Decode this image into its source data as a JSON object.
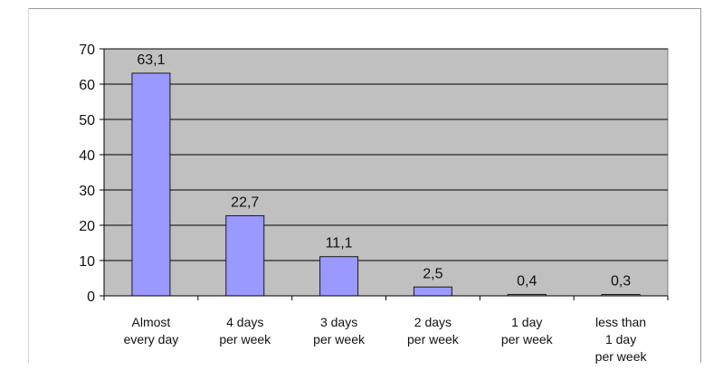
{
  "chart_data": {
    "type": "bar",
    "title": "",
    "xlabel": "",
    "ylabel": "",
    "ylim": [
      0,
      70
    ],
    "yticks": [
      "0",
      "10",
      "20",
      "30",
      "40",
      "50",
      "60",
      "70"
    ],
    "grid": true,
    "legend": "none",
    "categories": [
      [
        "Almost",
        "every day"
      ],
      [
        "4 days",
        "per week"
      ],
      [
        "3 days",
        "per week"
      ],
      [
        "2 days",
        "per week"
      ],
      [
        "1 day",
        "per week"
      ],
      [
        "less than",
        "1 day",
        "per week"
      ]
    ],
    "values": [
      63.1,
      22.7,
      11.1,
      2.5,
      0.4,
      0.3
    ],
    "data_labels": [
      "63,1",
      "22,7",
      "11,1",
      "2,5",
      "0,4",
      "0,3"
    ],
    "colors": {
      "bar_fill": "#9999ff",
      "bar_stroke": "#1a1a1a",
      "plot_bg": "#c0c0c0",
      "grid": "#000000"
    }
  }
}
